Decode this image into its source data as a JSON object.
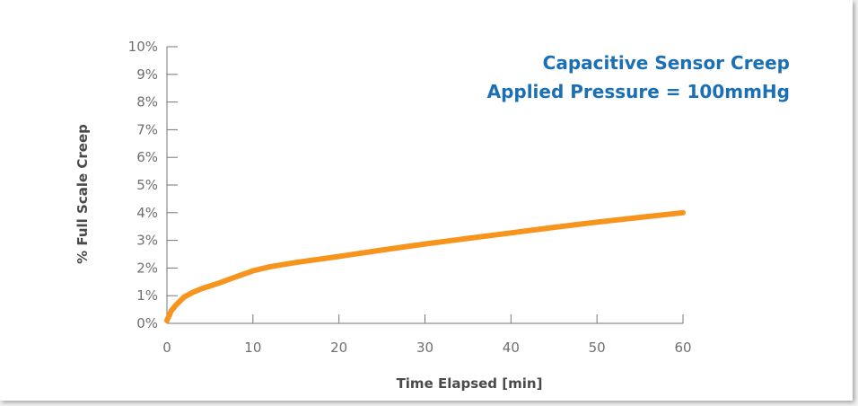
{
  "chart_data": {
    "type": "line",
    "title_lines": [
      "Capacitive Sensor Creep",
      "Applied Pressure = 100mmHg"
    ],
    "xlabel": "Time Elapsed [min]",
    "ylabel": "% Full Scale Creep",
    "xlim": [
      0,
      60
    ],
    "ylim": [
      0,
      10
    ],
    "x_ticks": [
      0,
      10,
      20,
      30,
      40,
      50,
      60
    ],
    "x_tick_labels": [
      "0",
      "10",
      "20",
      "30",
      "40",
      "50",
      "60"
    ],
    "y_ticks": [
      0,
      1,
      2,
      3,
      4,
      5,
      6,
      7,
      8,
      9,
      10
    ],
    "y_tick_labels": [
      "0%",
      "1%",
      "2%",
      "3%",
      "4%",
      "5%",
      "6%",
      "7%",
      "8%",
      "9%",
      "10%"
    ],
    "grid": false,
    "series": [
      {
        "color": "#f7941d",
        "x": [
          0,
          0.5,
          1,
          1.5,
          2,
          3,
          4,
          5,
          6,
          8,
          10,
          12,
          15,
          20,
          25,
          30,
          35,
          40,
          45,
          50,
          55,
          60
        ],
        "y": [
          0.1,
          0.45,
          0.65,
          0.8,
          0.95,
          1.12,
          1.25,
          1.35,
          1.45,
          1.68,
          1.9,
          2.05,
          2.2,
          2.42,
          2.65,
          2.87,
          3.07,
          3.27,
          3.47,
          3.66,
          3.83,
          4.0
        ]
      }
    ],
    "title_color": "#1a6fb5",
    "axis_color": "#777777"
  }
}
